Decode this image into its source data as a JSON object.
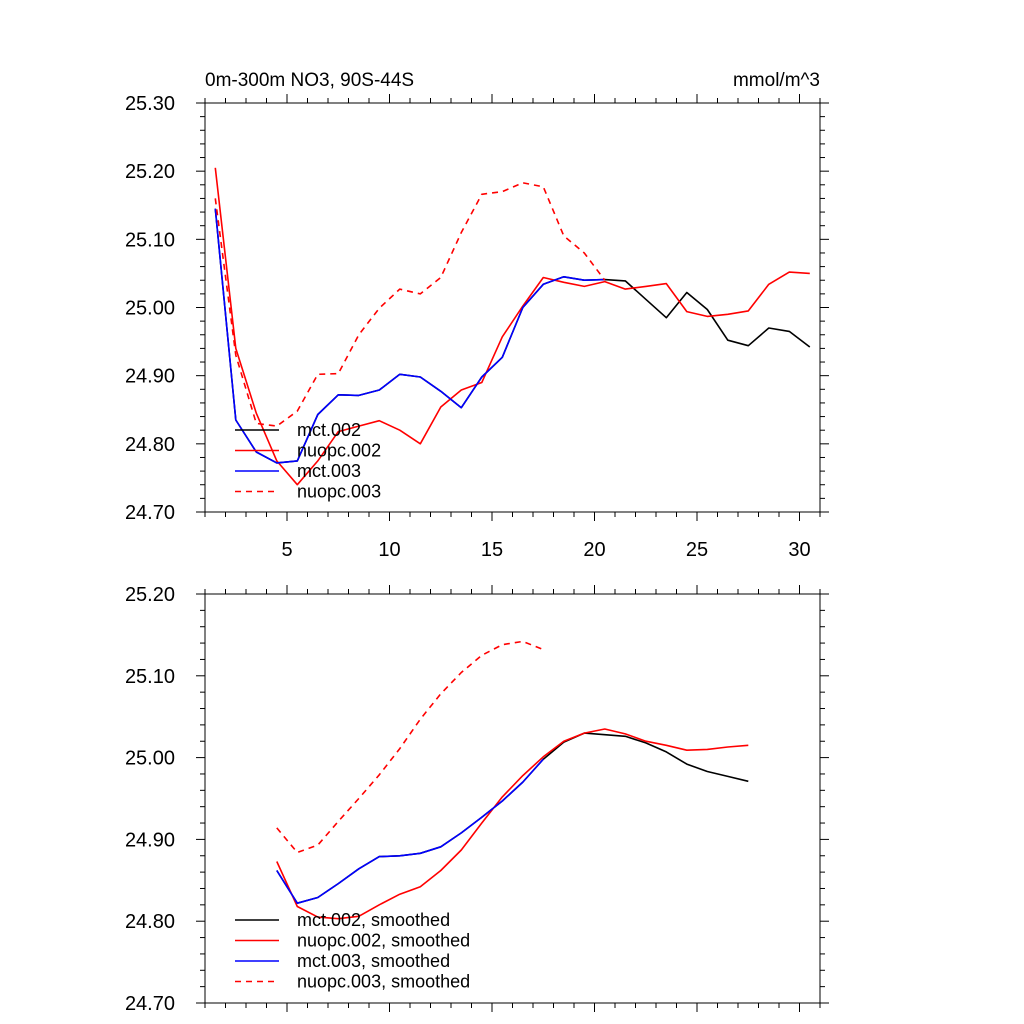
{
  "chart_data": [
    {
      "type": "line",
      "title": "0m-300m NO3, 90S-44S",
      "units": "mmol/m^3",
      "xlim": [
        1,
        31
      ],
      "ylim": [
        24.7,
        25.3
      ],
      "yticks": [
        "24.70",
        "24.80",
        "24.90",
        "25.00",
        "25.10",
        "25.20",
        "25.30"
      ],
      "xticks": [
        "5",
        "10",
        "15",
        "20",
        "25",
        "30"
      ],
      "legend": "bottom-left",
      "series": [
        {
          "name": "mct.002",
          "color": "#000000",
          "dash": false,
          "x": [
            1.5,
            2.5,
            3.5,
            4.5,
            5.5,
            6.5,
            7.5,
            8.5,
            9.5,
            10.5,
            11.5,
            12.5,
            13.5,
            14.5,
            15.5,
            16.5,
            17.5,
            18.5,
            19.5,
            20.5,
            21.5,
            22.5,
            23.5,
            24.5,
            25.5,
            26.5,
            27.5,
            28.5,
            29.5,
            30.5
          ],
          "y": [
            25.145,
            24.835,
            24.788,
            24.772,
            24.775,
            24.843,
            24.872,
            24.871,
            24.879,
            24.902,
            24.898,
            24.877,
            24.853,
            24.898,
            24.927,
            25.0,
            25.034,
            25.045,
            25.04,
            25.041,
            25.039,
            25.012,
            24.985,
            25.022,
            24.997,
            24.952,
            24.944,
            24.97,
            24.965,
            24.942
          ]
        },
        {
          "name": "nuopc.002",
          "color": "#ff0000",
          "dash": false,
          "x": [
            1.5,
            2.5,
            3.5,
            4.5,
            5.5,
            6.5,
            7.5,
            8.5,
            9.5,
            10.5,
            11.5,
            12.5,
            13.5,
            14.5,
            15.5,
            16.5,
            17.5,
            18.5,
            19.5,
            20.5,
            21.5,
            22.5,
            23.5,
            24.5,
            25.5,
            26.5,
            27.5,
            28.5,
            29.5,
            30.5
          ],
          "y": [
            25.205,
            24.94,
            24.845,
            24.775,
            24.74,
            24.775,
            24.818,
            24.826,
            24.834,
            24.82,
            24.8,
            24.854,
            24.879,
            24.89,
            24.957,
            25.002,
            25.044,
            25.037,
            25.031,
            25.038,
            25.027,
            25.031,
            25.035,
            24.994,
            24.987,
            24.99,
            24.995,
            25.034,
            25.052,
            25.05
          ]
        },
        {
          "name": "mct.003",
          "color": "#0000ff",
          "dash": false,
          "x": [
            1.5,
            2.5,
            3.5,
            4.5,
            5.5,
            6.5,
            7.5,
            8.5,
            9.5,
            10.5,
            11.5,
            12.5,
            13.5,
            14.5,
            15.5,
            16.5,
            17.5,
            18.5,
            19.5,
            20.5
          ],
          "y": [
            25.145,
            24.835,
            24.788,
            24.772,
            24.775,
            24.843,
            24.872,
            24.871,
            24.879,
            24.902,
            24.898,
            24.877,
            24.853,
            24.898,
            24.927,
            25.0,
            25.034,
            25.045,
            25.04,
            25.041
          ]
        },
        {
          "name": "nuopc.003",
          "color": "#ff0000",
          "dash": true,
          "x": [
            1.5,
            2.5,
            3.5,
            4.5,
            5.5,
            6.5,
            7.5,
            8.5,
            9.5,
            10.5,
            11.5,
            12.5,
            13.5,
            14.5,
            15.5,
            16.5,
            17.5,
            18.5,
            19.5,
            20.5
          ],
          "y": [
            25.16,
            24.93,
            24.83,
            24.826,
            24.848,
            24.902,
            24.903,
            24.96,
            24.999,
            25.027,
            25.02,
            25.044,
            25.11,
            25.166,
            25.17,
            25.183,
            25.177,
            25.105,
            25.08,
            25.04
          ]
        }
      ]
    },
    {
      "type": "line",
      "title": "",
      "units": "",
      "xlim": [
        1,
        31
      ],
      "ylim": [
        24.7,
        25.2
      ],
      "yticks": [
        "24.70",
        "24.80",
        "24.90",
        "25.00",
        "25.10",
        "25.20"
      ],
      "xticks": [],
      "legend": "bottom-left",
      "series": [
        {
          "name": "mct.002, smoothed",
          "color": "#000000",
          "dash": false,
          "x": [
            4.5,
            5.5,
            6.5,
            7.5,
            8.5,
            9.5,
            10.5,
            11.5,
            12.5,
            13.5,
            14.5,
            15.5,
            16.5,
            17.5,
            18.5,
            19.5,
            20.5,
            21.5,
            22.5,
            23.5,
            24.5,
            25.5,
            26.5,
            27.5
          ],
          "y": [
            24.862,
            24.822,
            24.829,
            24.846,
            24.864,
            24.879,
            24.88,
            24.883,
            24.891,
            24.908,
            24.927,
            24.947,
            24.97,
            24.998,
            25.019,
            25.03,
            25.028,
            25.026,
            25.018,
            25.007,
            24.992,
            24.983,
            24.977,
            24.971
          ]
        },
        {
          "name": "nuopc.002, smoothed",
          "color": "#ff0000",
          "dash": false,
          "x": [
            4.5,
            5.5,
            6.5,
            7.5,
            8.5,
            9.5,
            10.5,
            11.5,
            12.5,
            13.5,
            14.5,
            15.5,
            16.5,
            17.5,
            18.5,
            19.5,
            20.5,
            21.5,
            22.5,
            23.5,
            24.5,
            25.5,
            26.5,
            27.5
          ],
          "y": [
            24.873,
            24.818,
            24.805,
            24.803,
            24.806,
            24.82,
            24.833,
            24.842,
            24.862,
            24.887,
            24.92,
            24.952,
            24.978,
            25.001,
            25.02,
            25.03,
            25.035,
            25.029,
            25.02,
            25.015,
            25.009,
            25.01,
            25.013,
            25.015
          ]
        },
        {
          "name": "mct.003, smoothed",
          "color": "#0000ff",
          "dash": false,
          "x": [
            4.5,
            5.5,
            6.5,
            7.5,
            8.5,
            9.5,
            10.5,
            11.5,
            12.5,
            13.5,
            14.5,
            15.5,
            16.5,
            17.5
          ],
          "y": [
            24.862,
            24.822,
            24.829,
            24.846,
            24.864,
            24.879,
            24.88,
            24.883,
            24.891,
            24.908,
            24.927,
            24.947,
            24.97,
            24.998
          ]
        },
        {
          "name": "nuopc.003, smoothed",
          "color": "#ff0000",
          "dash": true,
          "x": [
            4.5,
            5.5,
            6.5,
            7.5,
            8.5,
            9.5,
            10.5,
            11.5,
            12.5,
            13.5,
            14.5,
            15.5,
            16.5,
            17.5
          ],
          "y": [
            24.914,
            24.884,
            24.893,
            24.922,
            24.95,
            24.979,
            25.011,
            25.047,
            25.078,
            25.104,
            25.125,
            25.138,
            25.142,
            25.132
          ]
        }
      ]
    }
  ]
}
